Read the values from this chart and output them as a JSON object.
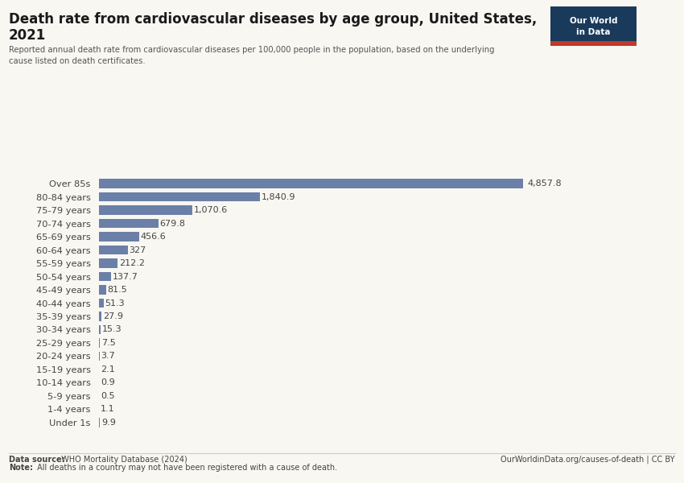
{
  "title_line1": "Death rate from cardiovascular diseases by age group, United States,",
  "title_line2": "2021",
  "subtitle": "Reported annual death rate from cardiovascular diseases per 100,000 people in the population, based on the underlying\ncause listed on death certificates.",
  "categories": [
    "Over 85s",
    "80-84 years",
    "75-79 years",
    "70-74 years",
    "65-69 years",
    "60-64 years",
    "55-59 years",
    "50-54 years",
    "45-49 years",
    "40-44 years",
    "35-39 years",
    "30-34 years",
    "25-29 years",
    "20-24 years",
    "15-19 years",
    "10-14 years",
    "5-9 years",
    "1-4 years",
    "Under 1s"
  ],
  "values": [
    4857.8,
    1840.9,
    1070.6,
    679.8,
    456.6,
    327.0,
    212.2,
    137.7,
    81.5,
    51.3,
    27.9,
    15.3,
    7.5,
    3.7,
    2.1,
    0.9,
    0.5,
    1.1,
    9.9
  ],
  "value_labels": [
    "4,857.8",
    "1,840.9",
    "1,070.6",
    "679.8",
    "456.6",
    "327",
    "212.2",
    "137.7",
    "81.5",
    "51.3",
    "27.9",
    "15.3",
    "7.5",
    "3.7",
    "2.1",
    "0.9",
    "0.5",
    "1.1",
    "9.9"
  ],
  "bar_color": "#6b80a8",
  "bg_color": "#f9f7f2",
  "text_color": "#444444",
  "label_color": "#444444",
  "datasource_bold": "Data source:",
  "datasource_rest": " WHO Mortality Database (2024)",
  "note_bold": "Note:",
  "note_rest": " All deaths in a country may not have been registered with a cause of death.",
  "credit_text": "OurWorldinData.org/causes-of-death | CC BY",
  "owid_bg": "#1a3a5c",
  "owid_red": "#c0392b",
  "owid_text_line1": "Our World",
  "owid_text_line2": "in Data"
}
